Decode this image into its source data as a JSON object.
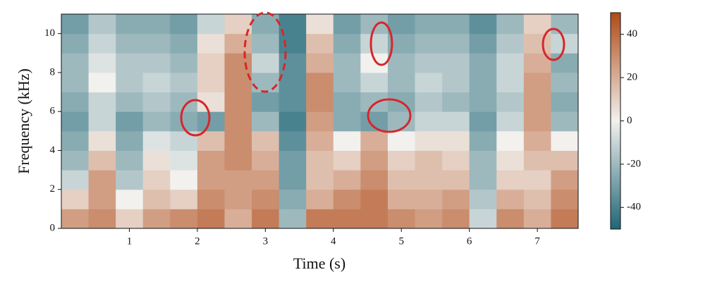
{
  "chart_data": {
    "type": "heatmap",
    "x_label": "Time (s)",
    "y_label": "Frequency (kHz)",
    "xlim": [
      0,
      7.6
    ],
    "xticks": [
      1,
      2,
      3,
      4,
      5,
      6,
      7
    ],
    "ylim": [
      0,
      11
    ],
    "yticks": [
      0,
      2,
      4,
      6,
      8,
      10
    ],
    "x_bins": [
      0,
      0.4,
      0.8,
      1.2,
      1.6,
      2.0,
      2.4,
      2.8,
      3.2,
      3.6,
      4.0,
      4.4,
      4.8,
      5.2,
      5.6,
      6.0,
      6.4,
      6.8,
      7.2,
      7.6
    ],
    "y_bins": [
      0,
      1,
      2,
      3,
      4,
      5,
      6,
      7,
      8,
      9,
      10,
      11
    ],
    "z": [
      [
        25,
        30,
        10,
        25,
        30,
        35,
        20,
        35,
        -20,
        35,
        35,
        35,
        30,
        25,
        30,
        -10,
        30,
        20,
        35
      ],
      [
        10,
        25,
        0,
        15,
        10,
        30,
        25,
        30,
        -25,
        20,
        30,
        35,
        20,
        20,
        25,
        -15,
        20,
        15,
        30
      ],
      [
        -10,
        25,
        -15,
        10,
        0,
        25,
        25,
        25,
        -30,
        15,
        20,
        30,
        15,
        15,
        15,
        -20,
        10,
        10,
        25
      ],
      [
        -20,
        15,
        -20,
        5,
        -5,
        25,
        30,
        20,
        -30,
        15,
        10,
        25,
        10,
        15,
        10,
        -20,
        5,
        15,
        15
      ],
      [
        -25,
        5,
        -25,
        -5,
        -10,
        15,
        30,
        15,
        -35,
        20,
        0,
        20,
        0,
        5,
        5,
        -25,
        0,
        20,
        0
      ],
      [
        -30,
        -10,
        -30,
        -20,
        -25,
        -30,
        30,
        -20,
        -40,
        25,
        -25,
        -30,
        -20,
        -10,
        -10,
        -30,
        -10,
        25,
        -20
      ],
      [
        -25,
        -10,
        -20,
        -15,
        -20,
        5,
        30,
        -30,
        -35,
        30,
        -25,
        -20,
        -25,
        -15,
        -20,
        -25,
        -15,
        25,
        -25
      ],
      [
        -20,
        0,
        -15,
        -10,
        -15,
        10,
        30,
        -20,
        -35,
        30,
        -20,
        -10,
        -20,
        -10,
        -15,
        -25,
        -10,
        25,
        -20
      ],
      [
        -20,
        -5,
        -15,
        -15,
        -20,
        10,
        30,
        -10,
        -35,
        20,
        -20,
        0,
        -20,
        -15,
        -15,
        -25,
        -10,
        20,
        -25
      ],
      [
        -25,
        -10,
        -20,
        -20,
        -25,
        5,
        20,
        -20,
        -40,
        15,
        -25,
        -10,
        -25,
        -20,
        -20,
        -30,
        -15,
        15,
        -10
      ],
      [
        -30,
        -15,
        -25,
        -25,
        -30,
        -10,
        10,
        -25,
        -40,
        5,
        -30,
        -20,
        -30,
        -25,
        -25,
        -35,
        -20,
        10,
        -20
      ]
    ],
    "clim": [
      -50,
      50
    ],
    "cticks": [
      -40,
      -20,
      0,
      20,
      40
    ],
    "colormap": [
      "#1f6677",
      "#f2f1ee",
      "#b04a17"
    ]
  }
}
